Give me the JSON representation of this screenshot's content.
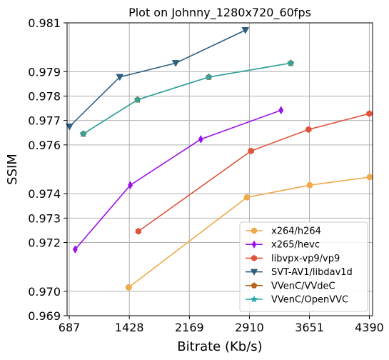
{
  "chart_data": {
    "type": "line",
    "title": "Plot on Johnny_1280x720_60fps",
    "xlabel": "Bitrate (Kb/s)",
    "ylabel": "SSIM",
    "xlim": [
      660,
      4430
    ],
    "ylim": [
      0.969,
      0.981
    ],
    "x_ticks": [
      687,
      1428,
      2169,
      2910,
      3651,
      4390
    ],
    "y_ticks": [
      0.969,
      0.97,
      0.972,
      0.973,
      0.974,
      0.976,
      0.977,
      0.978,
      0.979,
      0.981
    ],
    "x_tick_labels": [
      "687",
      "1428",
      "2169",
      "2910",
      "3651",
      "4390"
    ],
    "y_tick_labels": [
      "0.969",
      "0.970",
      "0.972",
      "0.973",
      "0.974",
      "0.976",
      "0.977",
      "0.978",
      "0.979",
      "0.981"
    ],
    "grid": true,
    "legend_position": "lower-right",
    "series": [
      {
        "name": "x264/h264",
        "color": "#f0a94b",
        "marker": "circle",
        "x": [
          1420,
          2880,
          3655,
          4395
        ],
        "y": [
          0.97016,
          0.97385,
          0.97435,
          0.97468
        ]
      },
      {
        "name": "x265/hevc",
        "color": "#9b12e6",
        "marker": "thin-diamond",
        "x": [
          760,
          1440,
          2310,
          3300
        ],
        "y": [
          0.97172,
          0.97435,
          0.97623,
          0.97742
        ]
      },
      {
        "name": "libvpx-vp9/vp9",
        "color": "#e0543c",
        "marker": "hexagon",
        "x": [
          1540,
          2930,
          3640,
          4390
        ],
        "y": [
          0.97246,
          0.97575,
          0.97663,
          0.97728
        ]
      },
      {
        "name": "SVT-AV1/libdav1d",
        "color": "#2e5f7f",
        "marker": "triangle-down",
        "x": [
          690,
          1310,
          2000,
          2860
        ],
        "y": [
          0.97675,
          0.97878,
          0.97935,
          0.9807
        ]
      },
      {
        "name": "VVenC/VVdeC",
        "color": "#b5651d",
        "marker": "pentagon",
        "x": [
          860,
          1530,
          2410,
          3420
        ],
        "y": [
          0.97645,
          0.97785,
          0.97878,
          0.97935
        ]
      },
      {
        "name": "VVenC/OpenVVC",
        "color": "#2aa8a8",
        "marker": "star",
        "x": [
          860,
          1530,
          2410,
          3420
        ],
        "y": [
          0.97645,
          0.97785,
          0.97878,
          0.97935
        ]
      }
    ]
  }
}
